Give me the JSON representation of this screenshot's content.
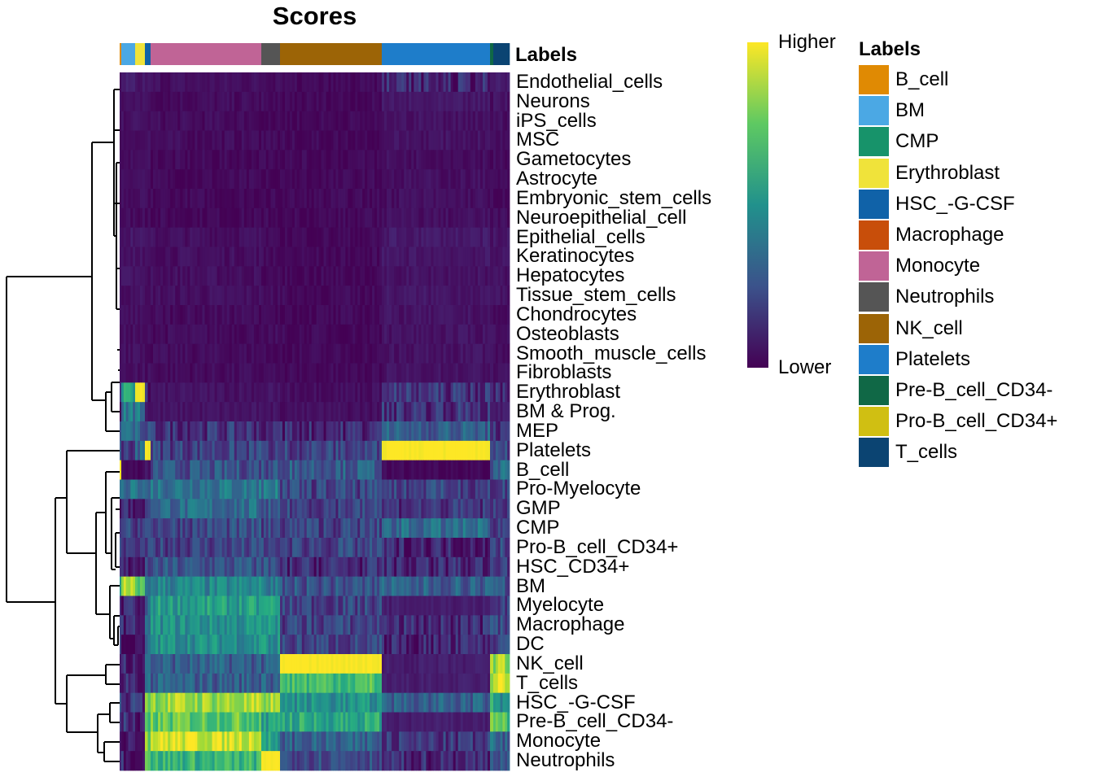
{
  "chart_data": {
    "type": "heatmap",
    "title": "Scores",
    "annotation_title": "Labels",
    "colorbar": {
      "high_label": "Higher",
      "low_label": "Lower",
      "colormap": "viridis"
    },
    "column_groups": [
      {
        "label": "B_cell",
        "n_cells": 2
      },
      {
        "label": "BM",
        "n_cells": 17
      },
      {
        "label": "Erythroblast",
        "n_cells": 12
      },
      {
        "label": "HSC_-G-CSF",
        "n_cells": 7
      },
      {
        "label": "Monocyte",
        "n_cells": 136
      },
      {
        "label": "Neutrophils",
        "n_cells": 23
      },
      {
        "label": "NK_cell",
        "n_cells": 125
      },
      {
        "label": "Platelets",
        "n_cells": 133
      },
      {
        "label": "Pre-B_cell_CD34-",
        "n_cells": 4
      },
      {
        "label": "T_cells",
        "n_cells": 20
      }
    ],
    "rows": [
      "Endothelial_cells",
      "Neurons",
      "iPS_cells",
      "MSC",
      "Gametocytes",
      "Astrocyte",
      "Embryonic_stem_cells",
      "Neuroepithelial_cell",
      "Epithelial_cells",
      "Keratinocytes",
      "Hepatocytes",
      "Tissue_stem_cells",
      "Chondrocytes",
      "Osteoblasts",
      "Smooth_muscle_cells",
      "Fibroblasts",
      "Erythroblast",
      "BM & Prog.",
      "MEP",
      "Platelets",
      "B_cell",
      "Pro-Myelocyte",
      "GMP",
      "CMP",
      "Pro-B_cell_CD34+",
      "HSC_CD34+",
      "BM",
      "Myelocyte",
      "Macrophage",
      "DC",
      "NK_cell",
      "T_cells",
      "HSC_-G-CSF",
      "Pre-B_cell_CD34-",
      "Monocyte",
      "Neutrophils"
    ],
    "values_scaled_by_group": [
      [
        0.05,
        0.08,
        0.06,
        0.05,
        0.04,
        0.03,
        0.02,
        0.1,
        0.06,
        0.08
      ],
      [
        0.03,
        0.05,
        0.04,
        0.04,
        0.03,
        0.03,
        0.02,
        0.06,
        0.04,
        0.05
      ],
      [
        0.03,
        0.04,
        0.04,
        0.03,
        0.03,
        0.02,
        0.02,
        0.05,
        0.04,
        0.04
      ],
      [
        0.03,
        0.04,
        0.03,
        0.03,
        0.03,
        0.02,
        0.02,
        0.05,
        0.03,
        0.04
      ],
      [
        0.02,
        0.03,
        0.03,
        0.03,
        0.02,
        0.02,
        0.02,
        0.04,
        0.03,
        0.03
      ],
      [
        0.02,
        0.03,
        0.03,
        0.03,
        0.02,
        0.02,
        0.02,
        0.04,
        0.03,
        0.03
      ],
      [
        0.02,
        0.03,
        0.03,
        0.03,
        0.02,
        0.02,
        0.02,
        0.04,
        0.03,
        0.03
      ],
      [
        0.02,
        0.03,
        0.03,
        0.03,
        0.02,
        0.02,
        0.02,
        0.04,
        0.03,
        0.03
      ],
      [
        0.04,
        0.06,
        0.05,
        0.05,
        0.04,
        0.03,
        0.02,
        0.07,
        0.05,
        0.06
      ],
      [
        0.04,
        0.05,
        0.05,
        0.05,
        0.04,
        0.03,
        0.02,
        0.06,
        0.05,
        0.05
      ],
      [
        0.03,
        0.05,
        0.04,
        0.04,
        0.04,
        0.03,
        0.02,
        0.05,
        0.04,
        0.05
      ],
      [
        0.04,
        0.05,
        0.05,
        0.05,
        0.04,
        0.03,
        0.02,
        0.06,
        0.05,
        0.05
      ],
      [
        0.03,
        0.04,
        0.04,
        0.04,
        0.03,
        0.03,
        0.02,
        0.05,
        0.04,
        0.04
      ],
      [
        0.03,
        0.04,
        0.04,
        0.04,
        0.03,
        0.03,
        0.02,
        0.05,
        0.04,
        0.04
      ],
      [
        0.03,
        0.04,
        0.04,
        0.04,
        0.03,
        0.03,
        0.02,
        0.05,
        0.04,
        0.04
      ],
      [
        0.03,
        0.04,
        0.04,
        0.04,
        0.03,
        0.03,
        0.02,
        0.05,
        0.04,
        0.04
      ],
      [
        0.1,
        0.6,
        1.0,
        0.1,
        0.05,
        0.05,
        0.04,
        0.15,
        0.1,
        0.1
      ],
      [
        0.1,
        0.4,
        0.4,
        0.05,
        0.05,
        0.05,
        0.04,
        0.15,
        0.06,
        0.08
      ],
      [
        0.2,
        0.3,
        0.3,
        0.2,
        0.15,
        0.15,
        0.12,
        0.3,
        0.15,
        0.15
      ],
      [
        0.3,
        0.15,
        0.35,
        1.0,
        0.2,
        0.2,
        0.2,
        1.0,
        0.2,
        0.2
      ],
      [
        1.0,
        0.02,
        0.02,
        0.05,
        0.25,
        0.25,
        0.3,
        0.02,
        0.3,
        0.35
      ],
      [
        0.3,
        0.35,
        0.3,
        0.3,
        0.4,
        0.4,
        0.2,
        0.2,
        0.2,
        0.2
      ],
      [
        0.1,
        0.1,
        0.05,
        0.3,
        0.35,
        0.3,
        0.2,
        0.15,
        0.2,
        0.2
      ],
      [
        0.15,
        0.2,
        0.2,
        0.2,
        0.22,
        0.2,
        0.2,
        0.35,
        0.2,
        0.2
      ],
      [
        0.15,
        0.18,
        0.18,
        0.18,
        0.2,
        0.2,
        0.2,
        0.1,
        0.2,
        0.2
      ],
      [
        0.1,
        0.1,
        0.05,
        0.2,
        0.25,
        0.25,
        0.12,
        0.12,
        0.2,
        0.2
      ],
      [
        0.5,
        0.9,
        0.7,
        0.4,
        0.45,
        0.4,
        0.25,
        0.3,
        0.3,
        0.25
      ],
      [
        0.1,
        0.1,
        0.05,
        0.3,
        0.55,
        0.55,
        0.2,
        0.08,
        0.2,
        0.2
      ],
      [
        0.1,
        0.1,
        0.05,
        0.3,
        0.5,
        0.5,
        0.2,
        0.12,
        0.2,
        0.2
      ],
      [
        0.1,
        0.1,
        0.05,
        0.3,
        0.5,
        0.5,
        0.2,
        0.1,
        0.2,
        0.2
      ],
      [
        0.1,
        0.1,
        0.05,
        0.3,
        0.3,
        0.3,
        1.0,
        0.08,
        0.9,
        0.85
      ],
      [
        0.1,
        0.1,
        0.05,
        0.3,
        0.3,
        0.3,
        0.7,
        0.08,
        0.9,
        0.95
      ],
      [
        0.2,
        0.15,
        0.1,
        0.8,
        0.85,
        0.85,
        0.5,
        0.3,
        0.6,
        0.5
      ],
      [
        0.2,
        0.15,
        0.1,
        0.7,
        0.75,
        0.55,
        0.6,
        0.08,
        0.95,
        0.7
      ],
      [
        0.15,
        0.1,
        0.05,
        0.8,
        0.95,
        0.55,
        0.3,
        0.15,
        0.5,
        0.3
      ],
      [
        0.15,
        0.1,
        0.05,
        0.7,
        0.65,
        1.0,
        0.25,
        0.12,
        0.4,
        0.25
      ]
    ]
  },
  "legend": {
    "title": "Labels",
    "items": [
      {
        "label": "B_cell",
        "color": "#E08A03"
      },
      {
        "label": "BM",
        "color": "#4BA8E4"
      },
      {
        "label": "CMP",
        "color": "#17936A"
      },
      {
        "label": "Erythroblast",
        "color": "#F0E33A"
      },
      {
        "label": "HSC_-G-CSF",
        "color": "#1062A8"
      },
      {
        "label": "Macrophage",
        "color": "#C84E0A"
      },
      {
        "label": "Monocyte",
        "color": "#C06496"
      },
      {
        "label": "Neutrophils",
        "color": "#555555"
      },
      {
        "label": "NK_cell",
        "color": "#9C6406"
      },
      {
        "label": "Platelets",
        "color": "#1E7DCA"
      },
      {
        "label": "Pre-B_cell_CD34-",
        "color": "#106846"
      },
      {
        "label": "Pro-B_cell_CD34+",
        "color": "#D0BF12"
      },
      {
        "label": "T_cells",
        "color": "#0B4472"
      }
    ]
  }
}
